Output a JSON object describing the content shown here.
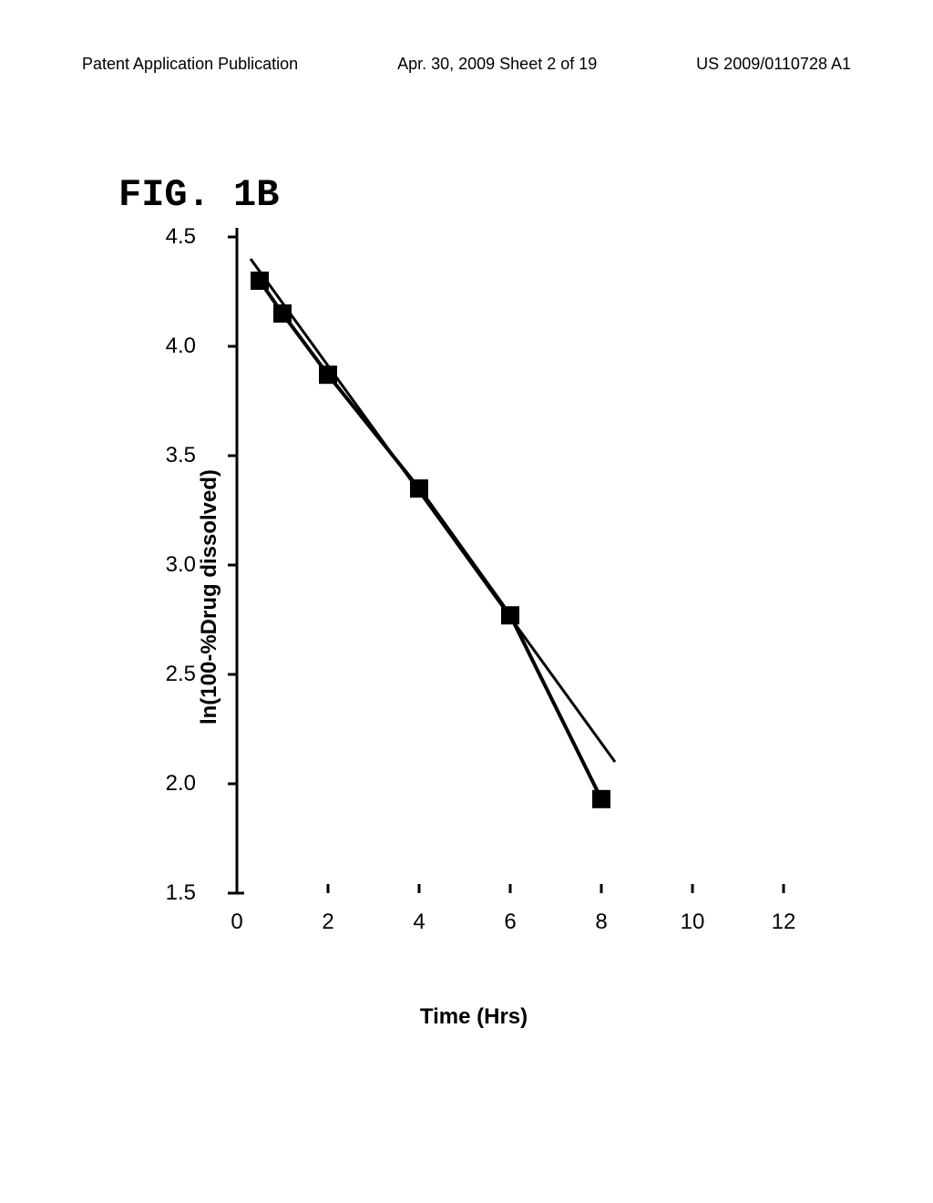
{
  "header": {
    "left": "Patent Application Publication",
    "mid": "Apr. 30, 2009  Sheet 2 of 19",
    "right": "US 2009/0110728 A1"
  },
  "figure": {
    "title": "FIG. 1B"
  },
  "chart": {
    "type": "scatter-line",
    "ylabel": "ln(100-%Drug dissolved)",
    "xlabel": "Time (Hrs)",
    "xlim": [
      0,
      12
    ],
    "ylim": [
      1.5,
      4.5
    ],
    "xticks": [
      0,
      2,
      4,
      6,
      8,
      10,
      12
    ],
    "yticks": [
      1.5,
      2.0,
      2.5,
      3.0,
      3.5,
      4.0,
      4.5
    ],
    "data_points": [
      {
        "x": 0.5,
        "y": 4.3
      },
      {
        "x": 1.0,
        "y": 4.15
      },
      {
        "x": 2.0,
        "y": 3.87
      },
      {
        "x": 4.0,
        "y": 3.35
      },
      {
        "x": 6.0,
        "y": 2.77
      },
      {
        "x": 8.0,
        "y": 1.93
      }
    ],
    "fit_line": {
      "start": {
        "x": 0.3,
        "y": 4.4
      },
      "end": {
        "x": 8.3,
        "y": 2.1
      }
    },
    "marker_color": "#000000",
    "marker_size": 20,
    "line_color": "#000000",
    "data_line_width": 4,
    "fit_line_width": 3,
    "axis_color": "#000000",
    "axis_width": 3,
    "tick_length": 10,
    "background_color": "#ffffff",
    "label_fontsize": 24,
    "tick_fontsize": 24,
    "ytick_format_decimals": 1,
    "xtick_format_decimals": 0
  }
}
